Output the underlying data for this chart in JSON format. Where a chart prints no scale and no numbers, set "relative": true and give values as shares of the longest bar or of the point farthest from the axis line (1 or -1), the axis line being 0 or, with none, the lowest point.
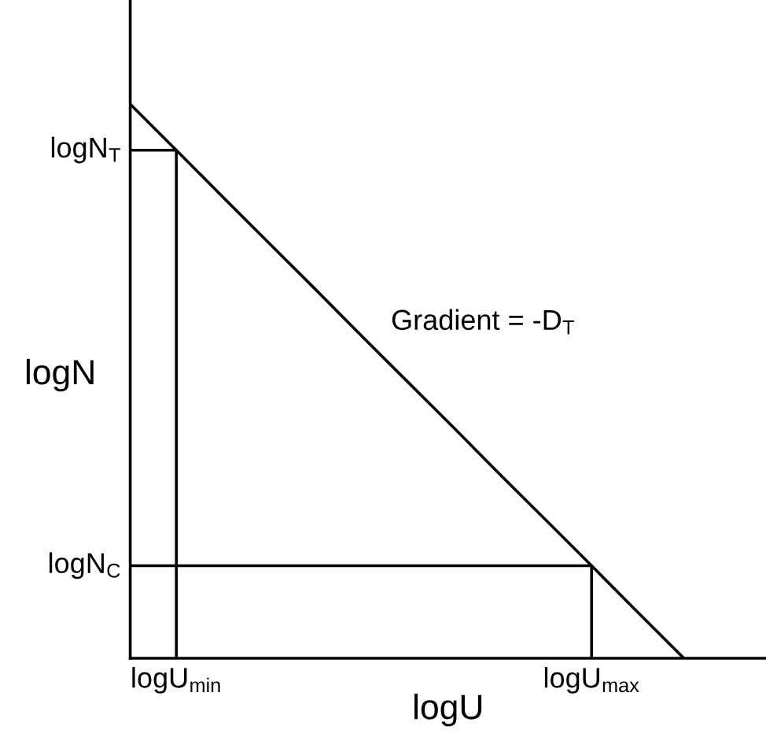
{
  "chart_data": {
    "type": "line",
    "relative": true,
    "xlabel": "logU",
    "ylabel": "logN",
    "marker": "none",
    "line_style": "solid",
    "categories": [
      null,
      "logU$_{min}$",
      null,
      null,
      null,
      null,
      null,
      null,
      null,
      null,
      "logU$_{max}$",
      null,
      null,
      null
    ],
    "series": [
      {
        "color": "#000000",
        "values": [
          1,
          0.917,
          0.833,
          0.75,
          0.667,
          0.583,
          0.5,
          0.417,
          0.333,
          0.25,
          0.167,
          0.083,
          0,
          null
        ]
      },
      {
        "color": "#000000",
        "values": [
          0.917,
          0.917,
          null,
          null,
          null,
          null,
          null,
          null,
          null,
          null,
          null,
          null,
          null,
          null
        ]
      },
      {
        "color": "#000000",
        "values": [
          0.167,
          0.167,
          0.167,
          0.167,
          0.167,
          0.167,
          0.167,
          0.167,
          0.167,
          0.167,
          0.167,
          null,
          null,
          null
        ]
      },
      {
        "color": "#000000",
        "x": [
          "logU$_{min}$",
          "logU$_{min}$"
        ],
        "values": [
          0,
          0.917
        ]
      },
      {
        "color": "#000000",
        "x": [
          "logU$_{max}$",
          "logU$_{max}$"
        ],
        "values": [
          0,
          0.167
        ]
      }
    ],
    "annotations": [
      "logN$_{T}$",
      "logN$_{C}$",
      "Gradient = -D$_{T}$"
    ]
  }
}
